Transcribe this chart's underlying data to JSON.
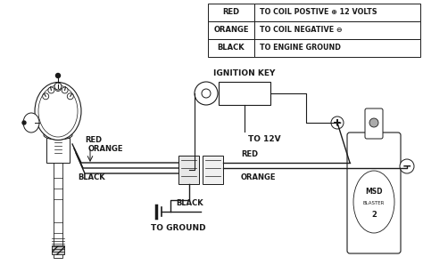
{
  "bg_color": "#ffffff",
  "line_color": "#1a1a1a",
  "fig_width": 4.74,
  "fig_height": 2.98,
  "dpi": 100,
  "legend_rows": [
    {
      "label": "RED",
      "desc": "TO COIL POSTIVE ⊕ 12 VOLTS"
    },
    {
      "label": "ORANGE",
      "desc": "TO COIL NEGATIVE ⊖"
    },
    {
      "label": "BLACK",
      "desc": "TO ENGINE GROUND"
    }
  ],
  "ignition_key_label": "IGNITION KEY",
  "to_12v_label": "TO 12V",
  "to_ground_label": "TO GROUND",
  "red_label": "RED",
  "orange_label": "ORANGE",
  "black_label": "BLACK",
  "wire_red": "#111111",
  "wire_orange": "#111111",
  "wire_black": "#111111"
}
